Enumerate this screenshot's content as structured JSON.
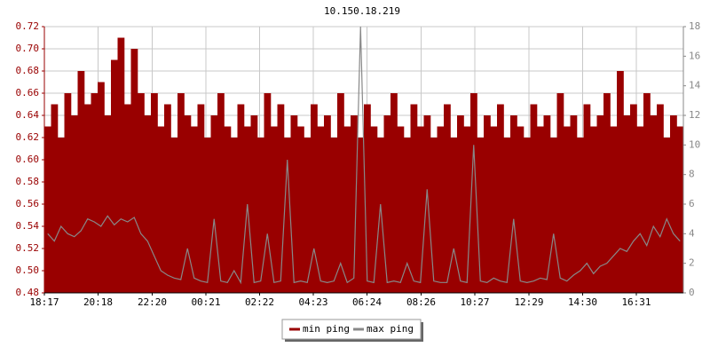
{
  "chart_data": {
    "type": "area-line",
    "title": "10.150.18.219",
    "x": [
      0,
      15,
      30,
      45,
      60,
      75,
      90,
      105,
      120,
      135,
      150,
      165,
      180,
      195,
      210,
      225,
      240,
      255,
      270,
      285,
      300,
      315,
      330,
      345,
      360,
      375,
      390,
      405,
      420,
      435,
      450,
      465,
      480,
      495,
      510,
      525,
      540,
      555,
      570,
      585,
      600,
      615,
      630,
      645,
      660,
      675,
      690,
      705,
      720,
      735,
      750,
      765,
      780,
      795,
      810,
      825,
      840,
      855,
      870,
      885,
      900,
      915,
      930,
      945,
      960,
      975,
      990,
      1005,
      1020,
      1035,
      1050,
      1065,
      1080,
      1095,
      1110,
      1125,
      1140,
      1155,
      1170,
      1185,
      1200,
      1215,
      1230,
      1245,
      1260,
      1275,
      1290,
      1305,
      1320,
      1335,
      1350,
      1365,
      1380,
      1395,
      1410,
      1425
    ],
    "series": [
      {
        "name": "min ping",
        "color": "#990000",
        "axis": "y",
        "values": [
          0.63,
          0.65,
          0.62,
          0.66,
          0.64,
          0.68,
          0.65,
          0.66,
          0.67,
          0.64,
          0.69,
          0.71,
          0.65,
          0.7,
          0.66,
          0.64,
          0.66,
          0.63,
          0.65,
          0.62,
          0.66,
          0.64,
          0.63,
          0.65,
          0.62,
          0.64,
          0.66,
          0.63,
          0.62,
          0.65,
          0.63,
          0.64,
          0.62,
          0.66,
          0.63,
          0.65,
          0.62,
          0.64,
          0.63,
          0.62,
          0.65,
          0.63,
          0.64,
          0.62,
          0.66,
          0.63,
          0.64,
          0.62,
          0.65,
          0.63,
          0.62,
          0.64,
          0.66,
          0.63,
          0.62,
          0.65,
          0.63,
          0.64,
          0.62,
          0.63,
          0.65,
          0.62,
          0.64,
          0.63,
          0.66,
          0.62,
          0.64,
          0.63,
          0.65,
          0.62,
          0.64,
          0.63,
          0.62,
          0.65,
          0.63,
          0.64,
          0.62,
          0.66,
          0.63,
          0.64,
          0.62,
          0.65,
          0.63,
          0.64,
          0.66,
          0.63,
          0.68,
          0.64,
          0.65,
          0.63,
          0.66,
          0.64,
          0.65,
          0.62,
          0.64,
          0.63
        ]
      },
      {
        "name": "max ping",
        "color": "#888888",
        "axis": "y2",
        "values": [
          4,
          3.5,
          4.5,
          4,
          3.8,
          4.2,
          5,
          4.8,
          4.5,
          5.2,
          4.6,
          5,
          4.8,
          5.1,
          4,
          3.5,
          2.5,
          1.5,
          1.2,
          1,
          0.9,
          3,
          1,
          0.8,
          0.7,
          5,
          0.8,
          0.7,
          1.5,
          0.7,
          6,
          0.7,
          0.8,
          4,
          0.7,
          0.8,
          9,
          0.7,
          0.8,
          0.7,
          3,
          0.8,
          0.7,
          0.8,
          2,
          0.7,
          1,
          18,
          0.8,
          0.7,
          6,
          0.7,
          0.8,
          0.7,
          2,
          0.8,
          0.7,
          7,
          0.8,
          0.7,
          0.7,
          3,
          0.8,
          0.7,
          10,
          0.8,
          0.7,
          1,
          0.8,
          0.7,
          5,
          0.8,
          0.7,
          0.8,
          1,
          0.9,
          4,
          1,
          0.8,
          1.2,
          1.5,
          2,
          1.3,
          1.8,
          2,
          2.5,
          3,
          2.8,
          3.5,
          4,
          3.2,
          4.5,
          3.8,
          5,
          4,
          3.5
        ]
      }
    ],
    "xlim": [
      0,
      1440
    ],
    "xticks": [
      {
        "value": 0,
        "label": "18:17"
      },
      {
        "value": 121,
        "label": "20:18"
      },
      {
        "value": 243,
        "label": "22:20"
      },
      {
        "value": 364,
        "label": "00:21"
      },
      {
        "value": 485,
        "label": "02:22"
      },
      {
        "value": 606,
        "label": "04:23"
      },
      {
        "value": 727,
        "label": "06:24"
      },
      {
        "value": 849,
        "label": "08:26"
      },
      {
        "value": 970,
        "label": "10:27"
      },
      {
        "value": 1092,
        "label": "12:29"
      },
      {
        "value": 1213,
        "label": "14:30"
      },
      {
        "value": 1334,
        "label": "16:31"
      }
    ],
    "ylim": [
      0.48,
      0.72
    ],
    "yticks": [
      0.48,
      {
        "value": 0.5,
        "label": "0.50"
      },
      0.52,
      0.54,
      0.56,
      0.58,
      {
        "value": 0.6,
        "label": "0.60"
      },
      0.62,
      0.64,
      0.66,
      0.68,
      {
        "value": 0.7,
        "label": "0.70"
      },
      0.72
    ],
    "y2lim": [
      0,
      18
    ],
    "y2ticks": [
      0,
      2,
      4,
      6,
      8,
      10,
      12,
      14,
      16,
      18
    ],
    "grid": true,
    "legend": "bottom"
  }
}
